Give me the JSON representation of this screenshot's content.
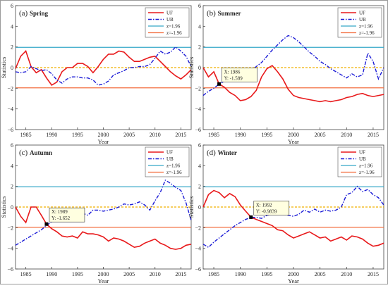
{
  "chart_data": [
    {
      "type": "line",
      "panel_label": "(a)",
      "title": "Spring",
      "xlabel": "Year",
      "ylabel": "Statistics",
      "xlim": [
        1983,
        2017
      ],
      "ylim": [
        -6,
        6
      ],
      "xticks": [
        1985,
        1990,
        1995,
        2000,
        2005,
        2010,
        2015
      ],
      "yticks": [
        -6,
        -4,
        -2,
        0,
        2,
        4,
        6
      ],
      "legend_position": "top-right",
      "series": [
        {
          "name": "UF",
          "style": "solid",
          "color": "#e8191b",
          "x": [
            1983,
            1984,
            1985,
            1986,
            1987,
            1988,
            1989,
            1990,
            1991,
            1992,
            1993,
            1994,
            1995,
            1996,
            1997,
            1998,
            1999,
            2000,
            2001,
            2002,
            2003,
            2004,
            2005,
            2006,
            2007,
            2008,
            2009,
            2010,
            2011,
            2012,
            2013,
            2014,
            2015,
            2016,
            2017
          ],
          "y": [
            -0.1,
            1.1,
            1.6,
            0.1,
            -0.5,
            -0.2,
            -1.0,
            -1.7,
            -1.4,
            -0.4,
            0.0,
            0.0,
            0.4,
            0.4,
            0.1,
            -0.5,
            0.1,
            0.8,
            1.3,
            1.3,
            1.6,
            1.5,
            1.0,
            0.6,
            0.6,
            0.8,
            1.0,
            1.1,
            0.6,
            0.1,
            -0.4,
            -0.8,
            -1.1,
            -0.7,
            -0.2
          ]
        },
        {
          "name": "UB",
          "style": "dashdot",
          "color": "#1a1ad6",
          "x": [
            1983,
            1984,
            1985,
            1986,
            1987,
            1988,
            1989,
            1990,
            1991,
            1992,
            1993,
            1994,
            1995,
            1996,
            1997,
            1998,
            1999,
            2000,
            2001,
            2002,
            2003,
            2004,
            2005,
            2006,
            2007,
            2008,
            2009,
            2010,
            2011,
            2012,
            2013,
            2014,
            2015,
            2016,
            2017
          ],
          "y": [
            -0.4,
            -0.5,
            -0.4,
            0.1,
            -0.1,
            -0.3,
            -0.2,
            -0.6,
            -1.2,
            -1.5,
            -1.1,
            -0.9,
            -0.9,
            -1.0,
            -1.0,
            -1.2,
            -1.7,
            -1.6,
            -1.3,
            -0.7,
            -0.5,
            -0.3,
            0.0,
            0.0,
            0.1,
            0.1,
            0.3,
            0.9,
            1.6,
            1.3,
            1.5,
            2.0,
            1.6,
            1.1,
            0.1
          ]
        }
      ],
      "reference_lines": [
        {
          "name": "z=1.96",
          "value": 1.96,
          "color": "#35a7c8"
        },
        {
          "name": "z=-1.96",
          "value": -1.96,
          "color": "#f26d3d"
        },
        {
          "name": "",
          "value": 0,
          "color": "#f0b000",
          "style": "dashed"
        }
      ]
    },
    {
      "type": "line",
      "panel_label": "(b)",
      "title": "Summer",
      "xlabel": "Year",
      "ylabel": "Statistics",
      "xlim": [
        1983,
        2017
      ],
      "ylim": [
        -6,
        6
      ],
      "xticks": [
        1985,
        1990,
        1995,
        2000,
        2005,
        2010,
        2015
      ],
      "yticks": [
        -6,
        -4,
        -2,
        0,
        2,
        4,
        6
      ],
      "legend_position": "top-right",
      "series": [
        {
          "name": "UF",
          "style": "solid",
          "color": "#e8191b",
          "x": [
            1983,
            1984,
            1985,
            1986,
            1987,
            1988,
            1989,
            1990,
            1991,
            1992,
            1993,
            1994,
            1995,
            1996,
            1997,
            1998,
            1999,
            2000,
            2001,
            2002,
            2003,
            2004,
            2005,
            2006,
            2007,
            2008,
            2009,
            2010,
            2011,
            2012,
            2013,
            2014,
            2015,
            2016,
            2017
          ],
          "y": [
            0.0,
            -0.9,
            -0.4,
            -1.589,
            -1.9,
            -2.4,
            -2.7,
            -3.2,
            -3.1,
            -2.8,
            -2.2,
            -0.9,
            -0.1,
            0.2,
            -0.4,
            -1.1,
            -2.1,
            -2.7,
            -2.9,
            -3.0,
            -3.1,
            -3.2,
            -3.3,
            -3.2,
            -3.3,
            -3.2,
            -3.1,
            -2.9,
            -2.8,
            -2.6,
            -2.5,
            -2.7,
            -2.8,
            -2.7,
            -2.6
          ]
        },
        {
          "name": "UB",
          "style": "dashdot",
          "color": "#1a1ad6",
          "x": [
            1983,
            1984,
            1985,
            1986,
            1987,
            1988,
            1989,
            1990,
            1991,
            1992,
            1993,
            1994,
            1995,
            1996,
            1997,
            1998,
            1999,
            2000,
            2001,
            2002,
            2003,
            2004,
            2005,
            2006,
            2007,
            2008,
            2009,
            2010,
            2011,
            2012,
            2013,
            2014,
            2015,
            2016,
            2017
          ],
          "y": [
            -2.7,
            -2.3,
            -2.0,
            -1.6,
            -1.3,
            -1.1,
            -0.9,
            -0.8,
            -0.6,
            -0.3,
            0.1,
            0.5,
            1.1,
            1.7,
            2.2,
            2.7,
            3.1,
            2.9,
            2.5,
            2.0,
            1.5,
            1.1,
            0.6,
            0.3,
            -0.1,
            -0.4,
            -0.7,
            -1.0,
            -0.6,
            -0.9,
            -0.7,
            1.4,
            0.6,
            -1.1,
            0.0
          ]
        }
      ],
      "reference_lines": [
        {
          "name": "z=1.96",
          "value": 1.96,
          "color": "#35a7c8"
        },
        {
          "name": "z=-1.96",
          "value": -1.96,
          "color": "#f26d3d"
        },
        {
          "name": "",
          "value": 0,
          "color": "#f0b000",
          "style": "dashed"
        }
      ],
      "annotation": {
        "x_text": "X: 1986",
        "y_text": "Y: -1.589",
        "x": 1986,
        "y": -1.589
      }
    },
    {
      "type": "line",
      "panel_label": "(c)",
      "title": "Autumn",
      "xlabel": "Year",
      "ylabel": "Statistics",
      "xlim": [
        1983,
        2017
      ],
      "ylim": [
        -6,
        6
      ],
      "xticks": [
        1985,
        1990,
        1995,
        2000,
        2005,
        2010,
        2015
      ],
      "yticks": [
        -6,
        -4,
        -2,
        0,
        2,
        4,
        6
      ],
      "legend_position": "top-right",
      "series": [
        {
          "name": "UF",
          "style": "solid",
          "color": "#e8191b",
          "x": [
            1983,
            1984,
            1985,
            1986,
            1987,
            1988,
            1989,
            1990,
            1991,
            1992,
            1993,
            1994,
            1995,
            1996,
            1997,
            1998,
            1999,
            2000,
            2001,
            2002,
            2003,
            2004,
            2005,
            2006,
            2007,
            2008,
            2009,
            2010,
            2011,
            2012,
            2013,
            2014,
            2015,
            2016,
            2017
          ],
          "y": [
            0.0,
            -0.9,
            -1.5,
            0.0,
            0.0,
            -0.8,
            -1.652,
            -2.1,
            -2.4,
            -2.8,
            -2.9,
            -2.8,
            -3.0,
            -2.4,
            -2.6,
            -2.6,
            -2.7,
            -2.9,
            -3.3,
            -3.0,
            -3.1,
            -3.3,
            -3.6,
            -3.9,
            -3.8,
            -3.5,
            -3.3,
            -3.1,
            -3.5,
            -3.7,
            -4.0,
            -4.1,
            -4.0,
            -3.7,
            -3.6
          ]
        },
        {
          "name": "UB",
          "style": "dashdot",
          "color": "#1a1ad6",
          "x": [
            1983,
            1984,
            1985,
            1986,
            1987,
            1988,
            1989,
            1990,
            1991,
            1992,
            1993,
            1994,
            1995,
            1996,
            1997,
            1998,
            1999,
            2000,
            2001,
            2002,
            2003,
            2004,
            2005,
            2006,
            2007,
            2008,
            2009,
            2010,
            2011,
            2012,
            2013,
            2014,
            2015,
            2016,
            2017
          ],
          "y": [
            -3.7,
            -3.4,
            -3.1,
            -2.8,
            -2.5,
            -2.2,
            -1.8,
            -1.4,
            -1.0,
            -0.7,
            -1.2,
            -1.3,
            -1.2,
            -0.6,
            -0.8,
            -0.3,
            -0.3,
            -0.4,
            -0.3,
            -0.2,
            0.0,
            0.3,
            0.2,
            0.3,
            0.5,
            0.2,
            -0.3,
            0.6,
            1.4,
            2.6,
            2.3,
            1.9,
            1.6,
            0.4,
            -1.3
          ]
        }
      ],
      "reference_lines": [
        {
          "name": "z=1.96",
          "value": 1.96,
          "color": "#35a7c8"
        },
        {
          "name": "z=-1.96",
          "value": -1.96,
          "color": "#f26d3d"
        },
        {
          "name": "",
          "value": 0,
          "color": "#f0b000",
          "style": "dashed"
        }
      ],
      "annotation": {
        "x_text": "X: 1989",
        "y_text": "Y: -1.652",
        "x": 1989,
        "y": -1.652
      }
    },
    {
      "type": "line",
      "panel_label": "(d)",
      "title": "Winter",
      "xlabel": "Year",
      "ylabel": "Statistics",
      "xlim": [
        1983,
        2017
      ],
      "ylim": [
        -6,
        6
      ],
      "xticks": [
        1985,
        1990,
        1995,
        2000,
        2005,
        2010,
        2015
      ],
      "yticks": [
        -6,
        -4,
        -2,
        0,
        2,
        4,
        6
      ],
      "legend_position": "top-right",
      "series": [
        {
          "name": "UF",
          "style": "solid",
          "color": "#e8191b",
          "x": [
            1983,
            1984,
            1985,
            1986,
            1987,
            1988,
            1989,
            1990,
            1991,
            1992,
            1993,
            1994,
            1995,
            1996,
            1997,
            1998,
            1999,
            2000,
            2001,
            2002,
            2003,
            2004,
            2005,
            2006,
            2007,
            2008,
            2009,
            2010,
            2011,
            2012,
            2013,
            2014,
            2015,
            2016,
            2017
          ],
          "y": [
            0.0,
            1.2,
            1.6,
            1.4,
            0.9,
            1.3,
            1.0,
            0.2,
            -0.4,
            -0.9839,
            -1.2,
            -1.4,
            -1.6,
            -1.8,
            -2.2,
            -2.3,
            -2.7,
            -3.0,
            -2.8,
            -2.6,
            -2.4,
            -2.7,
            -3.0,
            -2.9,
            -3.3,
            -3.1,
            -2.9,
            -3.2,
            -2.8,
            -2.9,
            -3.1,
            -3.5,
            -3.8,
            -3.7,
            -3.5
          ]
        },
        {
          "name": "UB",
          "style": "dashdot",
          "color": "#1a1ad6",
          "x": [
            1983,
            1984,
            1985,
            1986,
            1987,
            1988,
            1989,
            1990,
            1991,
            1992,
            1993,
            1994,
            1995,
            1996,
            1997,
            1998,
            1999,
            2000,
            2001,
            2002,
            2003,
            2004,
            2005,
            2006,
            2007,
            2008,
            2009,
            2010,
            2011,
            2012,
            2013,
            2014,
            2015,
            2016,
            2017
          ],
          "y": [
            -3.6,
            -3.9,
            -3.4,
            -3.0,
            -2.6,
            -2.2,
            -1.8,
            -1.5,
            -1.2,
            -1.0,
            -1.0,
            -1.1,
            -0.8,
            -0.7,
            -0.6,
            -0.6,
            -0.8,
            -0.9,
            -0.7,
            -0.3,
            -0.5,
            -0.2,
            -0.5,
            -0.3,
            -0.4,
            -0.3,
            0.0,
            1.2,
            1.4,
            2.0,
            1.5,
            1.7,
            1.2,
            0.9,
            0.2
          ]
        }
      ],
      "reference_lines": [
        {
          "name": "z=1.96",
          "value": 1.96,
          "color": "#35a7c8"
        },
        {
          "name": "z=-1.96",
          "value": -1.96,
          "color": "#f26d3d"
        },
        {
          "name": "",
          "value": 0,
          "color": "#f0b000",
          "style": "dashed"
        }
      ],
      "annotation": {
        "x_text": "X: 1992",
        "y_text": "Y: -0.9839",
        "x": 1992,
        "y": -0.9839
      }
    }
  ]
}
